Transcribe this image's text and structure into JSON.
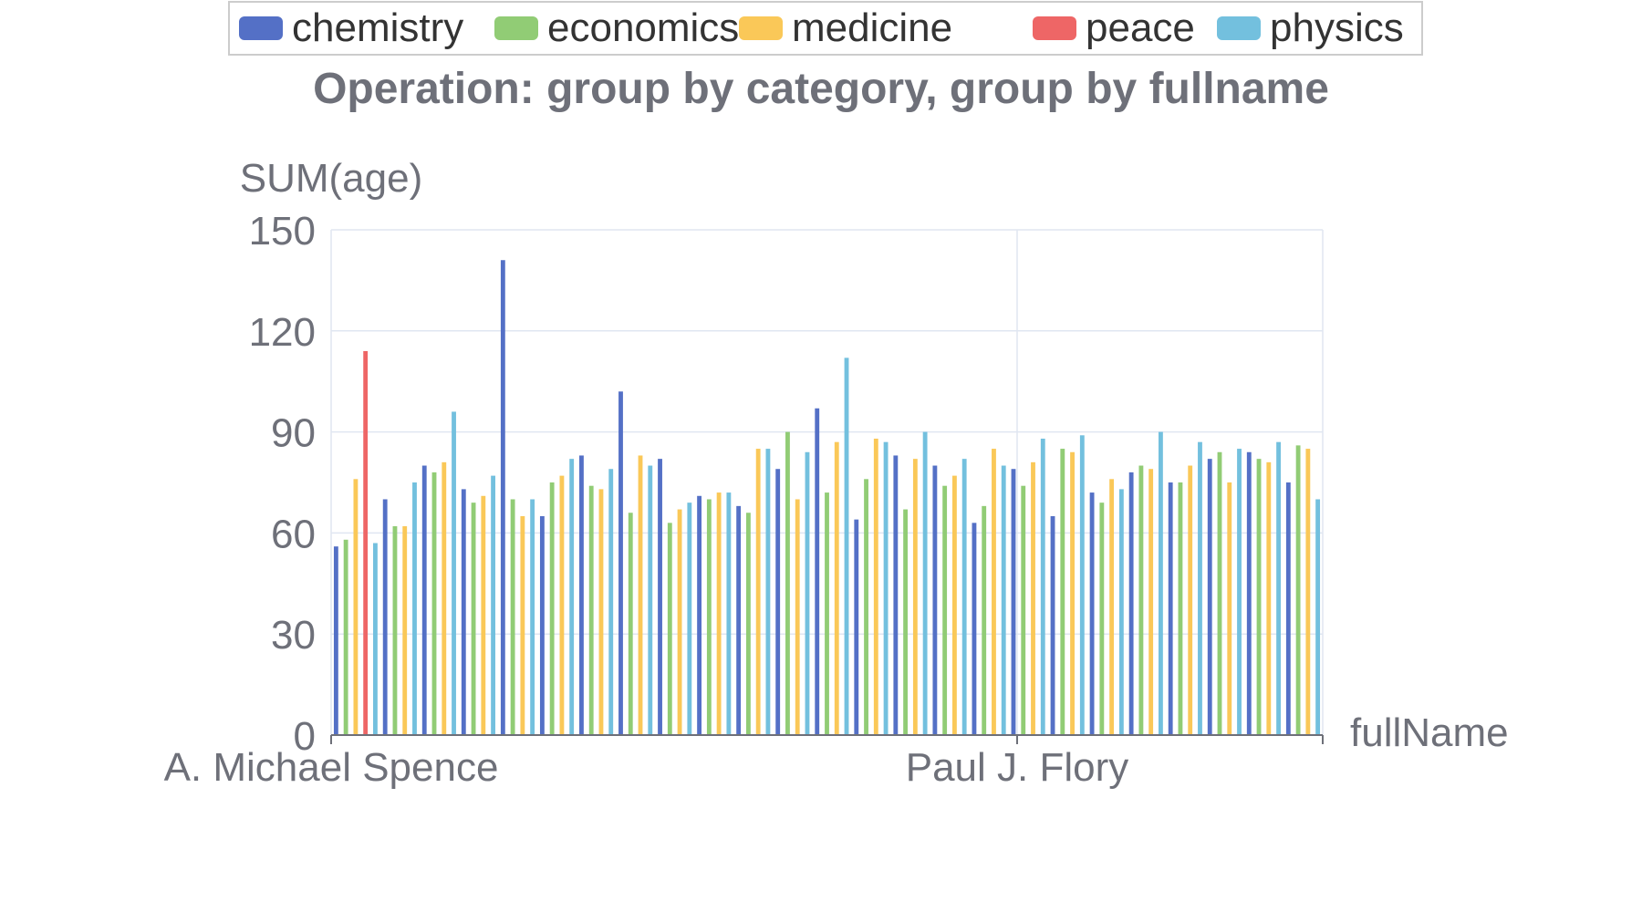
{
  "title": "Operation: group by category, group by fullname",
  "legend": [
    {
      "name": "chemistry",
      "color": "#5470c6"
    },
    {
      "name": "economics",
      "color": "#91cc75"
    },
    {
      "name": "medicine",
      "color": "#fac858"
    },
    {
      "name": "peace",
      "color": "#ee6666"
    },
    {
      "name": "physics",
      "color": "#73c0de"
    }
  ],
  "chart_data": {
    "type": "bar",
    "title": "Operation: group by category, group by fullname",
    "xlabel": "fullName",
    "ylabel": "SUM(age)",
    "ylim": [
      0,
      150
    ],
    "y_ticks": [
      0,
      30,
      60,
      90,
      120,
      150
    ],
    "x_tick_labels": [
      "A. Michael Spence",
      "Paul J. Flory"
    ],
    "grid": true,
    "legend_position": "top",
    "series": [
      {
        "name": "chemistry",
        "color": "#5470c6",
        "values": [
          56,
          70,
          80,
          73,
          141,
          65,
          83,
          102,
          82,
          71,
          68,
          79,
          97,
          64,
          83,
          80,
          63,
          79,
          65,
          72,
          78,
          75,
          82,
          84,
          75
        ]
      },
      {
        "name": "economics",
        "color": "#91cc75",
        "values": [
          58,
          62,
          78,
          69,
          70,
          75,
          74,
          66,
          63,
          70,
          66,
          90,
          72,
          76,
          67,
          74,
          68,
          74,
          85,
          69,
          80,
          75,
          84,
          82,
          86
        ]
      },
      {
        "name": "medicine",
        "color": "#fac858",
        "values": [
          76,
          62,
          81,
          71,
          65,
          77,
          73,
          83,
          67,
          72,
          85,
          70,
          87,
          88,
          82,
          77,
          85,
          81,
          84,
          76,
          79,
          80,
          75,
          81,
          85
        ]
      },
      {
        "name": "peace",
        "color": "#ee6666",
        "values": [
          114
        ]
      },
      {
        "name": "physics",
        "color": "#73c0de",
        "values": [
          57,
          75,
          96,
          77,
          70,
          82,
          79,
          80,
          69,
          72,
          85,
          84,
          112,
          87,
          90,
          82,
          80,
          88,
          89,
          73,
          90,
          87,
          85,
          87,
          70
        ]
      }
    ]
  }
}
